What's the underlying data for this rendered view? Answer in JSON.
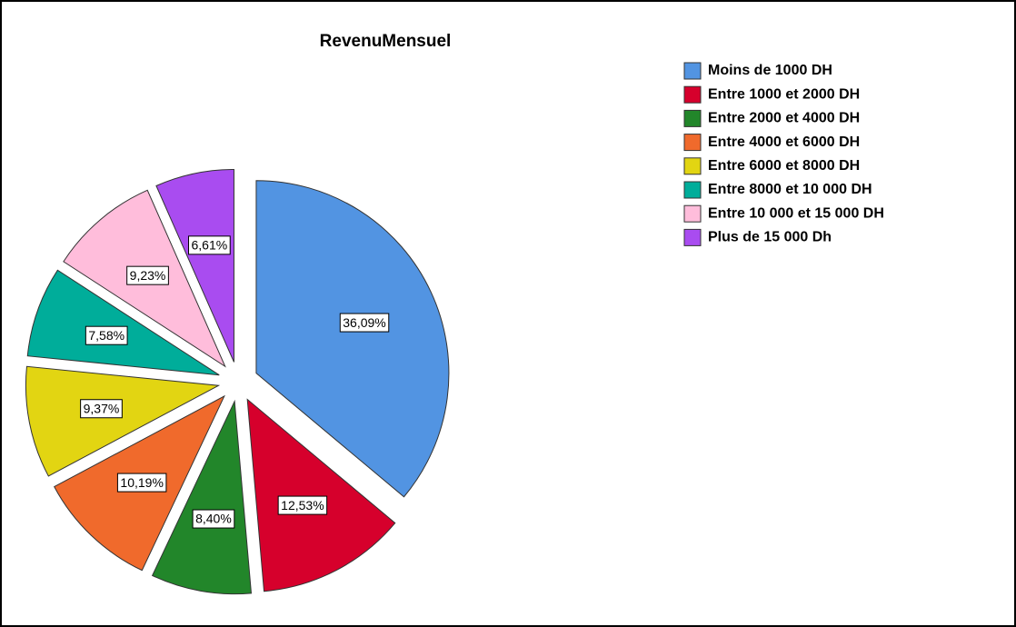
{
  "chart_data": {
    "type": "pie",
    "title": "RevenuMensuel",
    "categories": [
      "Moins de 1000 DH",
      "Entre 1000 et 2000 DH",
      "Entre 2000 et 4000 DH",
      "Entre 4000 et 6000 DH",
      "Entre 6000 et 8000 DH",
      "Entre 8000 et 10 000 DH",
      "Entre 10 000 et 15 000 DH",
      "Plus de 15 000 Dh"
    ],
    "values": [
      36.09,
      12.53,
      8.4,
      10.19,
      9.37,
      7.58,
      9.23,
      6.61
    ],
    "value_labels": [
      "36,09%",
      "12,53%",
      "8,40%",
      "10,19%",
      "9,37%",
      "7,58%",
      "9,23%",
      "6,61%"
    ],
    "colors": [
      "#5294e2",
      "#d6002c",
      "#22862a",
      "#f06a2c",
      "#e2d512",
      "#00ad9a",
      "#ffbddb",
      "#a94cf0"
    ],
    "legend": "top-right"
  }
}
